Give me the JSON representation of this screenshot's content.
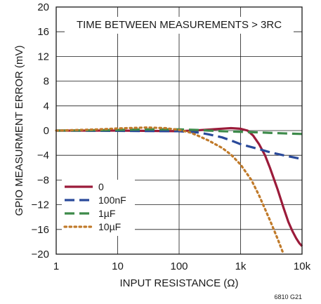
{
  "chart_data": {
    "type": "line",
    "title": "",
    "xlabel": "INPUT RESISTANCE (Ω)",
    "ylabel": "GPIO MEASURMENT ERROR (mV)",
    "xscale": "log",
    "xlim": [
      1,
      10000
    ],
    "ylim": [
      -20,
      20
    ],
    "xticks": [
      1,
      10,
      100,
      1000,
      10000
    ],
    "xtick_labels": [
      "1",
      "10",
      "100",
      "1k",
      "10k"
    ],
    "yticks": [
      20,
      16,
      12,
      8,
      4,
      0,
      -4,
      -8,
      -12,
      -16,
      -20
    ],
    "ytick_labels": [
      "20",
      "16",
      "12",
      "8",
      "4",
      "0",
      "−4",
      "−8",
      "−12",
      "−16",
      "−20"
    ],
    "grid": true,
    "annotation": "TIME BETWEEN MEASUREMENTS > 3RC",
    "figure_id": "6810 G21",
    "legend_position": "bottom-left",
    "series": [
      {
        "name": "0",
        "color": "#9b1b3a",
        "style": "solid",
        "x": [
          1,
          10,
          100,
          200,
          400,
          700,
          1000,
          1300,
          1600,
          2000,
          2500,
          3000,
          4000,
          5000,
          6000,
          7000,
          8000,
          9000,
          10000
        ],
        "y": [
          0,
          0,
          -0.1,
          0.05,
          0.25,
          0.4,
          0.3,
          0,
          -0.8,
          -2.2,
          -4.0,
          -6.0,
          -9.5,
          -12.5,
          -14.8,
          -16.3,
          -17.4,
          -18.2,
          -18.7
        ]
      },
      {
        "name": "100nF",
        "color": "#2a4a9a",
        "style": "dash",
        "x": [
          1,
          10,
          100,
          200,
          300,
          500,
          700,
          1000,
          2000,
          3000,
          5000,
          7000,
          10000
        ],
        "y": [
          0,
          -0.05,
          -0.1,
          -0.3,
          -0.6,
          -1.1,
          -1.6,
          -2.2,
          -3.0,
          -3.5,
          -4.0,
          -4.3,
          -4.6
        ]
      },
      {
        "name": "1µF",
        "color": "#3d8a4a",
        "style": "dash",
        "x": [
          1,
          10,
          30,
          100,
          200,
          300,
          500,
          1000,
          2000,
          5000,
          10000
        ],
        "y": [
          0,
          0.1,
          0.2,
          0.2,
          0.1,
          0,
          -0.1,
          -0.2,
          -0.3,
          -0.45,
          -0.55
        ]
      },
      {
        "name": "10µF",
        "color": "#c07a2a",
        "style": "dot",
        "x": [
          1,
          5,
          10,
          30,
          60,
          100,
          150,
          200,
          300,
          500,
          700,
          1000,
          1500,
          2000,
          3000,
          4000,
          5000
        ],
        "y": [
          0,
          0.2,
          0.35,
          0.5,
          0.4,
          0.1,
          -0.3,
          -0.8,
          -1.6,
          -2.8,
          -3.9,
          -5.5,
          -8.0,
          -10.5,
          -14.5,
          -17.5,
          -20
        ]
      }
    ]
  }
}
